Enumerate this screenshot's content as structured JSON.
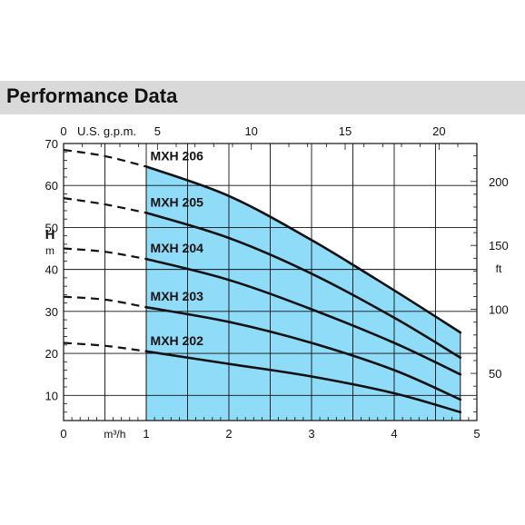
{
  "header": {
    "title": "Performance Data"
  },
  "chart_data": {
    "type": "line",
    "title": "",
    "x_units": {
      "primary": "m³/h",
      "secondary": "U.S. g.p.m."
    },
    "y_units": {
      "left_label": "H",
      "left_unit": "m",
      "right_unit": "ft"
    },
    "xlim": [
      0,
      5
    ],
    "ylim": [
      4,
      70
    ],
    "x_ticks": [
      "0",
      "1",
      "2",
      "3",
      "4",
      "5"
    ],
    "x_top_ticks": [
      "0",
      "5",
      "10",
      "15",
      "20"
    ],
    "y_ticks": [
      "10",
      "20",
      "30",
      "40",
      "50",
      "60",
      "70"
    ],
    "y_right_ticks": [
      "50",
      "100",
      "150",
      "200"
    ],
    "grid": true,
    "operating_range": {
      "from": 1.0,
      "to": 4.8,
      "fill_color": "#8fdcf8"
    },
    "series": [
      {
        "name": "MXH 206",
        "x": [
          0,
          0.5,
          1.0,
          2.0,
          3.0,
          4.0,
          4.8
        ],
        "y": [
          68.5,
          67.0,
          64.5,
          57.5,
          47.0,
          35.0,
          25.0
        ]
      },
      {
        "name": "MXH 205",
        "x": [
          0,
          0.5,
          1.0,
          2.0,
          3.0,
          4.0,
          4.8
        ],
        "y": [
          57.0,
          55.5,
          53.5,
          47.5,
          39.0,
          28.5,
          19.0
        ]
      },
      {
        "name": "MXH 204",
        "x": [
          0,
          0.5,
          1.0,
          2.0,
          3.0,
          4.0,
          4.8
        ],
        "y": [
          45.0,
          44.2,
          42.5,
          37.5,
          30.5,
          22.5,
          15.0
        ]
      },
      {
        "name": "MXH 203",
        "x": [
          0,
          0.5,
          1.0,
          2.0,
          3.0,
          4.0,
          4.8
        ],
        "y": [
          33.5,
          32.8,
          31.0,
          27.5,
          22.5,
          16.0,
          9.0
        ]
      },
      {
        "name": "MXH 202",
        "x": [
          0,
          0.5,
          1.0,
          2.0,
          3.0,
          4.0,
          4.8
        ],
        "y": [
          22.5,
          21.8,
          20.5,
          17.5,
          14.5,
          10.5,
          6.0
        ]
      }
    ]
  }
}
